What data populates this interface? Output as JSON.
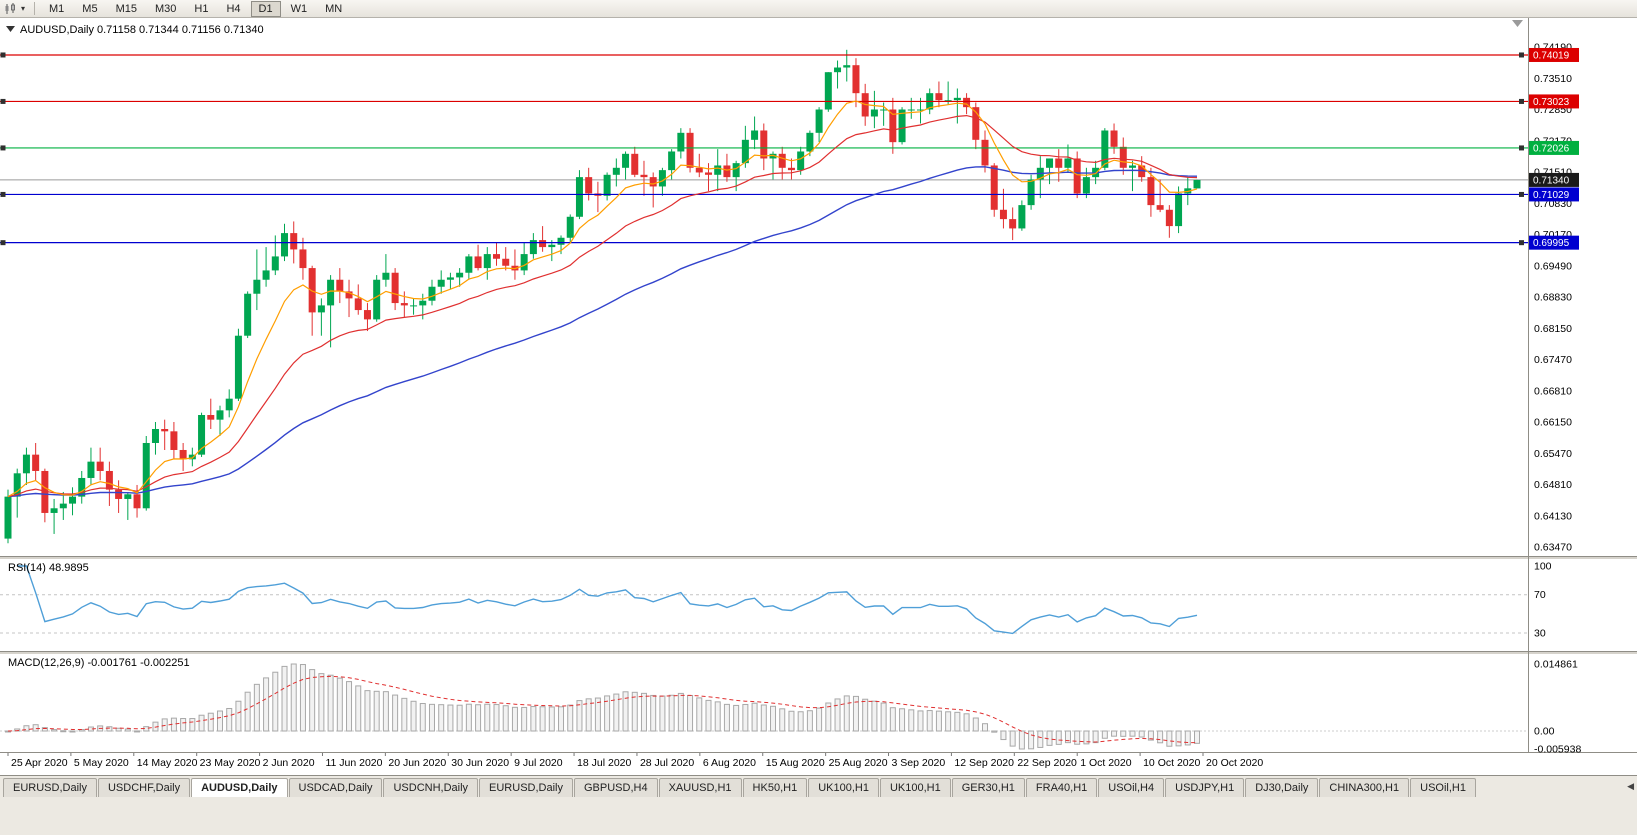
{
  "toolbar": {
    "icons": {
      "chart_type": "candlestick-chart-icon",
      "dropdown_caret": "▾"
    },
    "timeframes": [
      {
        "label": "M1",
        "active": false
      },
      {
        "label": "M5",
        "active": false
      },
      {
        "label": "M15",
        "active": false
      },
      {
        "label": "M30",
        "active": false
      },
      {
        "label": "H1",
        "active": false
      },
      {
        "label": "H4",
        "active": false
      },
      {
        "label": "D1",
        "active": true
      },
      {
        "label": "W1",
        "active": false
      },
      {
        "label": "MN",
        "active": false
      }
    ]
  },
  "chart": {
    "title": "AUDUSD,Daily 0.71158 0.71344 0.71156 0.71340",
    "symbol": "AUDUSD,Daily",
    "open": "0.71158",
    "high": "0.71344",
    "low": "0.71156",
    "close": "0.71340"
  },
  "chart_data": {
    "type": "candlestick",
    "symbol": "AUDUSD",
    "timeframe": "Daily",
    "colors": {
      "bull": "#00A651",
      "bear": "#E23030",
      "ma_fast_orange": "#FF9E00",
      "ma_mid_red": "#E03030",
      "ma_slow_blue": "#3344CC",
      "rsi_line": "#4F9FD8",
      "macd_signal": "#E03030",
      "hline_red": "#DC0000",
      "hline_green": "#00B040",
      "hline_blue": "#0000D0",
      "bid_label_bg": "#1A1A1A",
      "bid_line": "#9A9A9A"
    },
    "ma_periods": [
      8,
      21,
      55
    ],
    "price_axis": {
      "top": 0.7419,
      "bottom": 0.6347,
      "labels": [
        "0.74190",
        "0.73510",
        "0.72850",
        "0.72170",
        "0.71510",
        "0.70830",
        "0.70170",
        "0.69490",
        "0.68830",
        "0.68150",
        "0.67470",
        "0.66810",
        "0.66150",
        "0.65470",
        "0.64810",
        "0.64130",
        "0.63470"
      ]
    },
    "hlines": [
      {
        "value": 0.74019,
        "label": "0.74019",
        "color": "#DC0000"
      },
      {
        "value": 0.73023,
        "label": "0.73023",
        "color": "#DC0000"
      },
      {
        "value": 0.72026,
        "label": "0.72026",
        "color": "#00B040"
      },
      {
        "value": 0.71029,
        "label": "0.71029",
        "color": "#0000D0"
      },
      {
        "value": 0.69995,
        "label": "0.69995",
        "color": "#0000D0"
      }
    ],
    "current_price": {
      "value": 0.7134,
      "label": "0.71340"
    },
    "date_axis": [
      "25 Apr 2020",
      "5 May 2020",
      "14 May 2020",
      "23 May 2020",
      "2 Jun 2020",
      "11 Jun 2020",
      "20 Jun 2020",
      "30 Jun 2020",
      "9 Jul 2020",
      "18 Jul 2020",
      "28 Jul 2020",
      "6 Aug 2020",
      "15 Aug 2020",
      "25 Aug 2020",
      "3 Sep 2020",
      "12 Sep 2020",
      "22 Sep 2020",
      "1 Oct 2020",
      "10 Oct 2020",
      "20 Oct 2020"
    ],
    "rsi": {
      "title": "RSI(14) 48.9895",
      "period": 14,
      "levels": [
        70,
        30
      ],
      "axis_labels": [
        "100",
        "70",
        "30"
      ]
    },
    "macd": {
      "title": "MACD(12,26,9) -0.001761 -0.002251",
      "fast": 12,
      "slow": 26,
      "signal": 9,
      "axis_labels": [
        "0.014861",
        "0.00",
        "-0.005938"
      ]
    },
    "candles": [
      [
        0.6365,
        0.647,
        0.6355,
        0.6455
      ],
      [
        0.6455,
        0.6515,
        0.641,
        0.6505
      ],
      [
        0.6505,
        0.656,
        0.648,
        0.6545
      ],
      [
        0.6545,
        0.657,
        0.649,
        0.651
      ],
      [
        0.651,
        0.6515,
        0.64,
        0.642
      ],
      [
        0.642,
        0.645,
        0.6375,
        0.643
      ],
      [
        0.643,
        0.6465,
        0.6405,
        0.644
      ],
      [
        0.644,
        0.6475,
        0.6415,
        0.6455
      ],
      [
        0.6455,
        0.651,
        0.644,
        0.6495
      ],
      [
        0.6495,
        0.656,
        0.648,
        0.653
      ],
      [
        0.653,
        0.656,
        0.649,
        0.651
      ],
      [
        0.651,
        0.653,
        0.6435,
        0.647
      ],
      [
        0.647,
        0.649,
        0.642,
        0.645
      ],
      [
        0.645,
        0.6465,
        0.6405,
        0.646
      ],
      [
        0.646,
        0.648,
        0.641,
        0.643
      ],
      [
        0.643,
        0.6585,
        0.6425,
        0.657
      ],
      [
        0.657,
        0.6615,
        0.6545,
        0.66
      ],
      [
        0.66,
        0.662,
        0.6555,
        0.6595
      ],
      [
        0.6595,
        0.6615,
        0.6535,
        0.6555
      ],
      [
        0.6555,
        0.657,
        0.651,
        0.6535
      ],
      [
        0.6535,
        0.656,
        0.652,
        0.6545
      ],
      [
        0.6545,
        0.6635,
        0.654,
        0.663
      ],
      [
        0.663,
        0.6665,
        0.66,
        0.662
      ],
      [
        0.662,
        0.665,
        0.6585,
        0.664
      ],
      [
        0.664,
        0.6685,
        0.6625,
        0.6665
      ],
      [
        0.6665,
        0.6815,
        0.666,
        0.68
      ],
      [
        0.68,
        0.6895,
        0.6795,
        0.689
      ],
      [
        0.689,
        0.6985,
        0.6855,
        0.692
      ],
      [
        0.692,
        0.699,
        0.6905,
        0.694
      ],
      [
        0.694,
        0.7015,
        0.693,
        0.697
      ],
      [
        0.697,
        0.704,
        0.696,
        0.702
      ],
      [
        0.702,
        0.7045,
        0.6955,
        0.6985
      ],
      [
        0.6985,
        0.701,
        0.692,
        0.6945
      ],
      [
        0.6945,
        0.695,
        0.68,
        0.685
      ],
      [
        0.685,
        0.688,
        0.68,
        0.6865
      ],
      [
        0.6865,
        0.693,
        0.6775,
        0.692
      ],
      [
        0.692,
        0.6945,
        0.687,
        0.6895
      ],
      [
        0.6895,
        0.692,
        0.684,
        0.688
      ],
      [
        0.688,
        0.691,
        0.6845,
        0.6855
      ],
      [
        0.6855,
        0.687,
        0.681,
        0.6835
      ],
      [
        0.6835,
        0.693,
        0.683,
        0.692
      ],
      [
        0.692,
        0.6975,
        0.6905,
        0.6935
      ],
      [
        0.6935,
        0.6945,
        0.6855,
        0.687
      ],
      [
        0.687,
        0.6895,
        0.684,
        0.6865
      ],
      [
        0.6865,
        0.688,
        0.6845,
        0.6865
      ],
      [
        0.6865,
        0.689,
        0.6835,
        0.6875
      ],
      [
        0.6875,
        0.692,
        0.6865,
        0.6905
      ],
      [
        0.6905,
        0.694,
        0.689,
        0.692
      ],
      [
        0.692,
        0.6935,
        0.69,
        0.6925
      ],
      [
        0.6925,
        0.6945,
        0.6905,
        0.6935
      ],
      [
        0.6935,
        0.6975,
        0.692,
        0.697
      ],
      [
        0.697,
        0.6995,
        0.694,
        0.6945
      ],
      [
        0.6945,
        0.699,
        0.692,
        0.6975
      ],
      [
        0.6975,
        0.7,
        0.695,
        0.6965
      ],
      [
        0.6965,
        0.699,
        0.694,
        0.695
      ],
      [
        0.695,
        0.6985,
        0.692,
        0.694
      ],
      [
        0.694,
        0.7,
        0.693,
        0.6975
      ],
      [
        0.6975,
        0.702,
        0.6965,
        0.7005
      ],
      [
        0.7005,
        0.7035,
        0.698,
        0.699
      ],
      [
        0.699,
        0.7005,
        0.696,
        0.6995
      ],
      [
        0.6995,
        0.7015,
        0.6975,
        0.701
      ],
      [
        0.701,
        0.706,
        0.7,
        0.7055
      ],
      [
        0.7055,
        0.7155,
        0.705,
        0.714
      ],
      [
        0.714,
        0.716,
        0.709,
        0.7105
      ],
      [
        0.7105,
        0.713,
        0.7065,
        0.71
      ],
      [
        0.71,
        0.715,
        0.709,
        0.7145
      ],
      [
        0.7145,
        0.718,
        0.712,
        0.716
      ],
      [
        0.716,
        0.7195,
        0.7135,
        0.719
      ],
      [
        0.719,
        0.7205,
        0.714,
        0.7145
      ],
      [
        0.7145,
        0.7175,
        0.71,
        0.714
      ],
      [
        0.714,
        0.715,
        0.7075,
        0.712
      ],
      [
        0.712,
        0.716,
        0.71,
        0.7155
      ],
      [
        0.7155,
        0.72,
        0.7135,
        0.7195
      ],
      [
        0.7195,
        0.7245,
        0.718,
        0.7235
      ],
      [
        0.7235,
        0.7245,
        0.715,
        0.716
      ],
      [
        0.716,
        0.719,
        0.714,
        0.715
      ],
      [
        0.715,
        0.717,
        0.711,
        0.7145
      ],
      [
        0.7145,
        0.72,
        0.711,
        0.7165
      ],
      [
        0.7165,
        0.719,
        0.713,
        0.714
      ],
      [
        0.714,
        0.7175,
        0.711,
        0.717
      ],
      [
        0.717,
        0.725,
        0.716,
        0.722
      ],
      [
        0.722,
        0.727,
        0.72,
        0.724
      ],
      [
        0.724,
        0.7255,
        0.7155,
        0.718
      ],
      [
        0.718,
        0.7195,
        0.7135,
        0.719
      ],
      [
        0.719,
        0.7205,
        0.7135,
        0.716
      ],
      [
        0.716,
        0.718,
        0.7135,
        0.7155
      ],
      [
        0.7155,
        0.7205,
        0.7145,
        0.7195
      ],
      [
        0.7195,
        0.724,
        0.7185,
        0.7235
      ],
      [
        0.7235,
        0.729,
        0.7215,
        0.7285
      ],
      [
        0.7285,
        0.7365,
        0.728,
        0.7365
      ],
      [
        0.7365,
        0.739,
        0.733,
        0.7375
      ],
      [
        0.7375,
        0.7413,
        0.7345,
        0.738
      ],
      [
        0.738,
        0.7395,
        0.729,
        0.732
      ],
      [
        0.732,
        0.734,
        0.725,
        0.727
      ],
      [
        0.727,
        0.7325,
        0.7245,
        0.7285
      ],
      [
        0.7285,
        0.73,
        0.725,
        0.7285
      ],
      [
        0.7285,
        0.731,
        0.719,
        0.7215
      ],
      [
        0.7215,
        0.729,
        0.721,
        0.7285
      ],
      [
        0.7285,
        0.731,
        0.7265,
        0.7285
      ],
      [
        0.7285,
        0.731,
        0.7255,
        0.7285
      ],
      [
        0.7285,
        0.733,
        0.7275,
        0.732
      ],
      [
        0.732,
        0.7345,
        0.729,
        0.7305
      ],
      [
        0.7305,
        0.7345,
        0.7295,
        0.7305
      ],
      [
        0.7305,
        0.733,
        0.7255,
        0.731
      ],
      [
        0.731,
        0.732,
        0.7275,
        0.729
      ],
      [
        0.729,
        0.73,
        0.72,
        0.722
      ],
      [
        0.722,
        0.724,
        0.715,
        0.7165
      ],
      [
        0.7165,
        0.717,
        0.7055,
        0.707
      ],
      [
        0.707,
        0.7115,
        0.703,
        0.705
      ],
      [
        0.705,
        0.7075,
        0.7005,
        0.703
      ],
      [
        0.703,
        0.709,
        0.7025,
        0.708
      ],
      [
        0.708,
        0.7145,
        0.707,
        0.7135
      ],
      [
        0.7135,
        0.7185,
        0.7095,
        0.716
      ],
      [
        0.716,
        0.718,
        0.7125,
        0.718
      ],
      [
        0.718,
        0.72,
        0.713,
        0.716
      ],
      [
        0.716,
        0.721,
        0.715,
        0.718
      ],
      [
        0.718,
        0.7195,
        0.7095,
        0.7105
      ],
      [
        0.7105,
        0.716,
        0.7095,
        0.714
      ],
      [
        0.714,
        0.7175,
        0.7125,
        0.716
      ],
      [
        0.716,
        0.7245,
        0.7155,
        0.724
      ],
      [
        0.724,
        0.7255,
        0.719,
        0.7205
      ],
      [
        0.7205,
        0.7225,
        0.7145,
        0.716
      ],
      [
        0.716,
        0.7175,
        0.711,
        0.7165
      ],
      [
        0.7165,
        0.7185,
        0.713,
        0.714
      ],
      [
        0.714,
        0.716,
        0.7055,
        0.708
      ],
      [
        0.708,
        0.7135,
        0.7065,
        0.707
      ],
      [
        0.707,
        0.708,
        0.701,
        0.7035
      ],
      [
        0.7035,
        0.712,
        0.702,
        0.7105
      ],
      [
        0.7105,
        0.714,
        0.708,
        0.7116
      ],
      [
        0.71158,
        0.71344,
        0.71156,
        0.7134
      ]
    ]
  },
  "tabs": {
    "scroll_left": "◀",
    "items": [
      {
        "label": "EURUSD,Daily",
        "active": false
      },
      {
        "label": "USDCHF,Daily",
        "active": false
      },
      {
        "label": "AUDUSD,Daily",
        "active": true
      },
      {
        "label": "USDCAD,Daily",
        "active": false
      },
      {
        "label": "USDCNH,Daily",
        "active": false
      },
      {
        "label": "EURUSD,Daily",
        "active": false
      },
      {
        "label": "GBPUSD,H4",
        "active": false
      },
      {
        "label": "XAUUSD,H1",
        "active": false
      },
      {
        "label": "HK50,H1",
        "active": false
      },
      {
        "label": "UK100,H1",
        "active": false
      },
      {
        "label": "UK100,H1",
        "active": false
      },
      {
        "label": "GER30,H1",
        "active": false
      },
      {
        "label": "FRA40,H1",
        "active": false
      },
      {
        "label": "USOil,H4",
        "active": false
      },
      {
        "label": "USDJPY,H1",
        "active": false
      },
      {
        "label": "DJ30,Daily",
        "active": false
      },
      {
        "label": "CHINA300,H1",
        "active": false
      },
      {
        "label": "USOil,H1",
        "active": false
      }
    ]
  }
}
